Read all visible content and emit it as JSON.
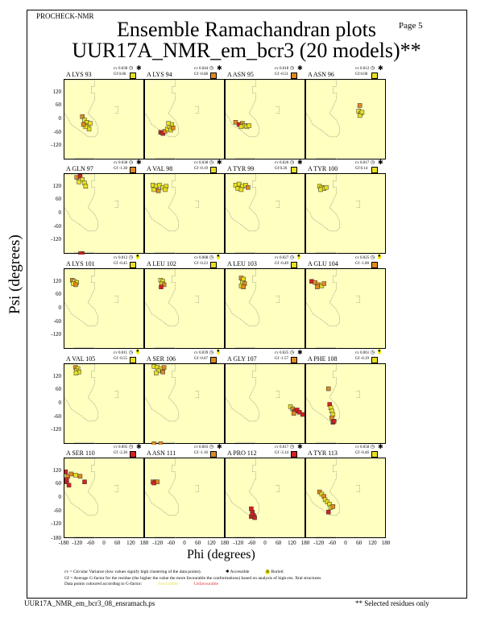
{
  "header": {
    "program": "PROCHECK-NMR",
    "page": "Page  5"
  },
  "footer": {
    "cv_note": "cv = Circular Variance (low values signify high clustering of the data points).",
    "accessible": "Accessible",
    "buried": "Buried",
    "gf_note": "Gf = Average G-factor for the residue (the higher the value the more favourable the conformations) based on analysis of high-res. Xtal structures",
    "colour_note": "Data points coloured according to G-factor:",
    "favourable": "Favourable",
    "unfavourable": "Unfavourable",
    "filename": "UUR17A_NMR_em_bcr3_08_ensramach.ps",
    "selected_note": "** Selected residues only"
  },
  "colors": {
    "Y": "#e8e020",
    "O": "#e08a20",
    "R": "#d42020",
    "panel": "#ffffc0"
  },
  "chart_data": {
    "type": "scatter",
    "title": "Ensemble Ramachandran plots",
    "subtitle": "UUR17A_NMR_em_bcr3 (20 models)**",
    "xlabel": "Phi (degrees)",
    "ylabel": "Psi (degrees)",
    "xlim": [
      -180,
      180
    ],
    "ylim": [
      -180,
      180
    ],
    "xticks": [
      "-180",
      "-120",
      "-60",
      "0",
      "60",
      "120",
      "180"
    ],
    "yticks": [
      "120",
      "60",
      "0",
      "-60",
      "-120"
    ],
    "panels": [
      {
        "residue": "A LYS 93",
        "cv": "cv 0.038",
        "gf": "Gf 0.06",
        "gfc": "Y",
        "acc": "accessible",
        "points": [
          [
            -100,
            15,
            "O"
          ],
          [
            -90,
            0,
            "Y"
          ],
          [
            -80,
            -10,
            "Y"
          ],
          [
            -75,
            -25,
            "Y"
          ],
          [
            -70,
            -40,
            "Y"
          ],
          [
            -85,
            -30,
            "Y"
          ],
          [
            -65,
            -15,
            "Y"
          ],
          [
            -95,
            -20,
            "O"
          ]
        ]
      },
      {
        "residue": "A LYS 94",
        "cv": "cv 0.044",
        "gf": "Gf -0.68",
        "gfc": "O",
        "acc": "accessible",
        "points": [
          [
            -110,
            -55,
            "R"
          ],
          [
            -100,
            -60,
            "R"
          ],
          [
            -90,
            -50,
            "O"
          ],
          [
            -80,
            -40,
            "Y"
          ],
          [
            -70,
            -30,
            "Y"
          ],
          [
            -60,
            -20,
            "Y"
          ],
          [
            -75,
            -15,
            "Y"
          ],
          [
            -65,
            -45,
            "Y"
          ],
          [
            -55,
            -35,
            "O"
          ]
        ]
      },
      {
        "residue": "A ASN 95",
        "cv": "cv 0.018",
        "gf": "Gf -0.51",
        "gfc": "O",
        "acc": "accessible",
        "points": [
          [
            -135,
            -10,
            "O"
          ],
          [
            -120,
            -20,
            "R"
          ],
          [
            -105,
            -15,
            "O"
          ],
          [
            -95,
            -25,
            "Y"
          ],
          [
            -85,
            -30,
            "Y"
          ],
          [
            -75,
            -25,
            "Y"
          ],
          [
            -110,
            -30,
            "Y"
          ]
        ]
      },
      {
        "residue": "A ASN 96",
        "cv": "cv 0.012",
        "gf": "Gf 0.00",
        "gfc": "Y",
        "acc": "accessible",
        "points": [
          [
            60,
            65,
            "O"
          ],
          [
            55,
            40,
            "Y"
          ],
          [
            65,
            30,
            "Y"
          ],
          [
            60,
            20,
            "Y"
          ],
          [
            70,
            35,
            "Y"
          ]
        ]
      },
      {
        "residue": "A GLN 97",
        "cv": "cv 0.038",
        "gf": "Gf -1.38",
        "gfc": "O",
        "acc": "accessible",
        "points": [
          [
            -125,
            165,
            "O"
          ],
          [
            -110,
            170,
            "R"
          ],
          [
            -100,
            155,
            "Y"
          ],
          [
            -90,
            140,
            "Y"
          ],
          [
            -115,
            145,
            "Y"
          ],
          [
            -85,
            125,
            "Y"
          ],
          [
            -100,
            -176,
            "R"
          ],
          [
            -108,
            -176,
            "R"
          ]
        ]
      },
      {
        "residue": "A VAL 98",
        "cv": "cv 0.038",
        "gf": "Gf -0.19",
        "gfc": "Y",
        "acc": "accessible",
        "points": [
          [
            -145,
            130,
            "Y"
          ],
          [
            -130,
            125,
            "Y"
          ],
          [
            -115,
            130,
            "Y"
          ],
          [
            -100,
            120,
            "Y"
          ],
          [
            -85,
            125,
            "Y"
          ],
          [
            -140,
            110,
            "Y"
          ],
          [
            -120,
            105,
            "O"
          ],
          [
            -90,
            110,
            "Y"
          ]
        ]
      },
      {
        "residue": "A TYR 99",
        "cv": "cv 0.020",
        "gf": "Gf 0.26",
        "gfc": "Y",
        "acc": "accessible",
        "points": [
          [
            -135,
            130,
            "Y"
          ],
          [
            -120,
            135,
            "Y"
          ],
          [
            -105,
            125,
            "Y"
          ],
          [
            -90,
            130,
            "Y"
          ],
          [
            -125,
            115,
            "Y"
          ],
          [
            -110,
            110,
            "Y"
          ],
          [
            -80,
            120,
            "O"
          ]
        ]
      },
      {
        "residue": "A TYR 100",
        "cv": "cv 0.017",
        "gf": "Gf 0.14",
        "gfc": "Y",
        "acc": "accessible",
        "points": [
          [
            -120,
            125,
            "Y"
          ],
          [
            -110,
            120,
            "Y"
          ],
          [
            -100,
            115,
            "Y"
          ],
          [
            -90,
            120,
            "Y"
          ],
          [
            -115,
            110,
            "Y"
          ]
        ]
      },
      {
        "residue": "A LYS 101",
        "cv": "cv 0.012",
        "gf": "Gf -0.45",
        "gfc": "Y",
        "acc": "buried",
        "points": [
          [
            -145,
            130,
            "O"
          ],
          [
            -135,
            125,
            "Y"
          ],
          [
            -125,
            120,
            "Y"
          ],
          [
            -140,
            115,
            "Y"
          ],
          [
            -130,
            110,
            "O"
          ]
        ]
      },
      {
        "residue": "A LEU 102",
        "cv": "cv 0.008",
        "gf": "Gf -0.23",
        "gfc": "Y",
        "acc": "buried",
        "points": [
          [
            -110,
            130,
            "Y"
          ],
          [
            -100,
            125,
            "Y"
          ],
          [
            -105,
            115,
            "Y"
          ],
          [
            -95,
            110,
            "O"
          ],
          [
            -108,
            100,
            "R"
          ]
        ]
      },
      {
        "residue": "A LEU 103",
        "cv": "cv 0.027",
        "gf": "Gf -0.49",
        "gfc": "Y",
        "acc": "buried",
        "points": [
          [
            -110,
            140,
            "O"
          ],
          [
            -100,
            135,
            "Y"
          ],
          [
            -105,
            120,
            "Y"
          ],
          [
            -95,
            115,
            "O"
          ],
          [
            -110,
            105,
            "Y"
          ],
          [
            -100,
            100,
            "O"
          ]
        ]
      },
      {
        "residue": "A GLU 104",
        "cv": "cv 0.025",
        "gf": "Gf -1.00",
        "gfc": "O",
        "acc": "buried",
        "points": [
          [
            -155,
            125,
            "R"
          ],
          [
            -140,
            120,
            "O"
          ],
          [
            -125,
            110,
            "O"
          ],
          [
            -110,
            105,
            "Y"
          ],
          [
            -100,
            115,
            "O"
          ],
          [
            -130,
            100,
            "O"
          ]
        ]
      },
      {
        "residue": "A VAL 105",
        "cv": "cv 0.011",
        "gf": "Gf -0.55",
        "gfc": "Y",
        "acc": "buried",
        "points": [
          [
            -130,
            165,
            "O"
          ],
          [
            -120,
            160,
            "Y"
          ],
          [
            -125,
            150,
            "Y"
          ],
          [
            -115,
            145,
            "Y"
          ],
          [
            -128,
            140,
            "Y"
          ]
        ]
      },
      {
        "residue": "A SER 106",
        "cv": "cv 0.039",
        "gf": "Gf -0.67",
        "gfc": "O",
        "acc": "buried",
        "points": [
          [
            -140,
            170,
            "Y"
          ],
          [
            -125,
            165,
            "Y"
          ],
          [
            -110,
            160,
            "Y"
          ],
          [
            -95,
            165,
            "O"
          ],
          [
            -120,
            150,
            "Y"
          ],
          [
            -100,
            145,
            "O"
          ],
          [
            -130,
            140,
            "Y"
          ],
          [
            -140,
            -176,
            "O"
          ],
          [
            -110,
            -176,
            "O"
          ]
        ]
      },
      {
        "residue": "A GLY 107",
        "cv": "cv 0.025",
        "gf": "Gf -1.57",
        "gfc": "O",
        "acc": "accessible",
        "points": [
          [
            110,
            -10,
            "Y"
          ],
          [
            120,
            -20,
            "O"
          ],
          [
            130,
            -30,
            "R"
          ],
          [
            140,
            -25,
            "R"
          ],
          [
            150,
            -35,
            "R"
          ],
          [
            165,
            -45,
            "R"
          ],
          [
            125,
            -40,
            "O"
          ]
        ]
      },
      {
        "residue": "A PHE 108",
        "cv": "cv 0.061",
        "gf": "Gf -0.19",
        "gfc": "Y",
        "acc": "buried",
        "points": [
          [
            -80,
            70,
            "O"
          ],
          [
            -75,
            0,
            "R"
          ],
          [
            -70,
            -15,
            "Y"
          ],
          [
            -65,
            -30,
            "Y"
          ],
          [
            -60,
            -45,
            "Y"
          ],
          [
            -65,
            -60,
            "O"
          ],
          [
            -60,
            -80,
            "R"
          ],
          [
            -55,
            -75,
            "R"
          ]
        ]
      },
      {
        "residue": "A SER 110",
        "cv": "cv 0.095",
        "gf": "Gf -2.30",
        "gfc": "R",
        "acc": "accessible",
        "points": [
          [
            -175,
            120,
            "R"
          ],
          [
            -165,
            100,
            "O"
          ],
          [
            -170,
            75,
            "R"
          ],
          [
            -160,
            60,
            "R"
          ],
          [
            -150,
            110,
            "O"
          ],
          [
            -130,
            105,
            "Y"
          ],
          [
            -110,
            100,
            "O"
          ],
          [
            -90,
            75,
            "R"
          ],
          [
            -170,
            85,
            "R"
          ]
        ]
      },
      {
        "residue": "A ASN 111",
        "cv": "cv 0.003",
        "gf": "Gf -1.16",
        "gfc": "O",
        "acc": "accessible",
        "points": [
          [
            -145,
            75,
            "O"
          ],
          [
            -135,
            75,
            "R"
          ],
          [
            -125,
            75,
            "O"
          ],
          [
            -140,
            70,
            "R"
          ]
        ]
      },
      {
        "residue": "A PRO 112",
        "cv": "cv 0.017",
        "gf": "Gf -3.14",
        "gfc": "R",
        "acc": "accessible",
        "points": [
          [
            -65,
            -45,
            "R"
          ],
          [
            -60,
            -60,
            "R"
          ],
          [
            -55,
            -75,
            "R"
          ],
          [
            -65,
            -80,
            "R"
          ],
          [
            -50,
            -85,
            "R"
          ],
          [
            -60,
            -70,
            "R"
          ]
        ]
      },
      {
        "residue": "A TYR 113",
        "cv": "cv 0.058",
        "gf": "Gf -0.46",
        "gfc": "Y",
        "acc": "accessible",
        "points": [
          [
            -120,
            30,
            "O"
          ],
          [
            -110,
            20,
            "Y"
          ],
          [
            -100,
            10,
            "O"
          ],
          [
            -95,
            -5,
            "Y"
          ],
          [
            -85,
            -15,
            "Y"
          ],
          [
            -75,
            -25,
            "Y"
          ],
          [
            -70,
            -40,
            "Y"
          ],
          [
            -60,
            -35,
            "O"
          ],
          [
            -80,
            -60,
            "R"
          ]
        ]
      }
    ]
  }
}
